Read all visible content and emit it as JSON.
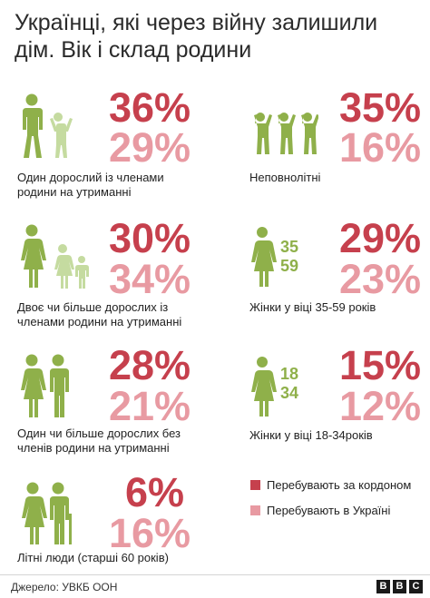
{
  "title": "Українці, які через війну залишили дім. Вік і склад родини",
  "colors": {
    "abroad": "#c6404d",
    "home": "#e89aa2",
    "figure_dark": "#8fb04a",
    "figure_light": "#c5dba0"
  },
  "items": [
    {
      "abroad": "36%",
      "home": "29%",
      "caption_line1": "Один дорослий із членами",
      "caption_line2": "родини на утриманні",
      "icon": "adult-and-child-icon"
    },
    {
      "abroad": "35%",
      "home": "16%",
      "caption_line1": "Неповнолітні",
      "caption_line2": "",
      "icon": "children-icon"
    },
    {
      "abroad": "30%",
      "home": "34%",
      "caption_line1": "Двоє чи більше дорослих із",
      "caption_line2": "членами родини на утриманні",
      "icon": "family-icon"
    },
    {
      "abroad": "29%",
      "home": "23%",
      "caption_line1": "Жінки у віці 35-59 років",
      "caption_line2": "",
      "icon": "woman-icon",
      "age_top": "35",
      "age_bottom": "59"
    },
    {
      "abroad": "28%",
      "home": "21%",
      "caption_line1": "Один чи більше дорослих без",
      "caption_line2": "членів родини на утриманні",
      "icon": "two-adults-icon"
    },
    {
      "abroad": "15%",
      "home": "12%",
      "caption_line1": "Жінки у віці 18-34років",
      "caption_line2": "",
      "icon": "woman-icon",
      "age_top": "18",
      "age_bottom": "34"
    },
    {
      "abroad": "6%",
      "home": "16%",
      "caption_line1": "Літні люди (старші 60 років)",
      "caption_line2": "",
      "icon": "elderly-couple-icon"
    }
  ],
  "legend": {
    "abroad_label": "Перебувають за кордоном",
    "home_label": "Перебувають в Україні"
  },
  "footer": {
    "source": "Джерело: УВКБ ООН",
    "brand_letters": [
      "B",
      "B",
      "C"
    ]
  }
}
